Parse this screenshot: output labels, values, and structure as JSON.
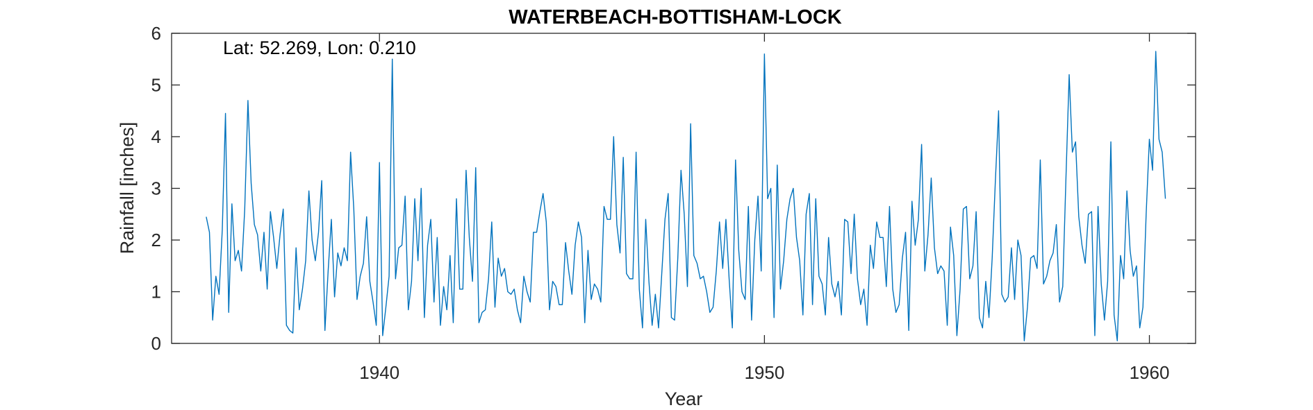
{
  "chart_data": {
    "type": "line",
    "title": "WATERBEACH-BOTTISHAM-LOCK",
    "annotation": "Lat: 52.269, Lon: 0.210",
    "xlabel": "Year",
    "ylabel": "Rainfall [inches]",
    "xlim": [
      1934.6,
      1961.2
    ],
    "ylim": [
      0,
      6
    ],
    "xticks": [
      1940,
      1950,
      1960
    ],
    "yticks": [
      0,
      1,
      2,
      3,
      4,
      5,
      6
    ],
    "grid": false,
    "box": true,
    "line_color": "#0072BD",
    "series": [
      {
        "x_start": 1935.5,
        "x_step": 0.08333,
        "values": [
          2.45,
          2.15,
          0.45,
          1.3,
          0.95,
          2.2,
          4.45,
          0.6,
          2.7,
          1.6,
          1.8,
          1.4,
          2.6,
          4.7,
          3.1,
          2.3,
          2.1,
          1.4,
          2.15,
          1.05,
          2.55,
          2.05,
          1.45,
          2.1,
          2.6,
          0.35,
          0.25,
          0.2,
          1.85,
          0.65,
          1.05,
          1.6,
          2.95,
          2.0,
          1.6,
          2.15,
          3.15,
          0.25,
          1.4,
          2.4,
          0.9,
          1.75,
          1.5,
          1.85,
          1.6,
          3.7,
          2.6,
          0.85,
          1.3,
          1.55,
          2.45,
          1.2,
          0.8,
          0.35,
          3.5,
          0.15,
          0.7,
          1.3,
          5.5,
          1.25,
          1.85,
          1.9,
          2.85,
          0.65,
          1.2,
          2.8,
          1.6,
          3.0,
          0.5,
          1.9,
          2.4,
          0.8,
          2.05,
          0.35,
          1.1,
          0.65,
          1.7,
          0.4,
          2.8,
          1.05,
          1.05,
          3.35,
          2.05,
          1.2,
          3.4,
          0.4,
          0.6,
          0.65,
          1.25,
          2.35,
          0.7,
          1.65,
          1.3,
          1.45,
          1.0,
          0.95,
          1.05,
          0.65,
          0.4,
          1.3,
          1.0,
          0.8,
          2.15,
          2.15,
          2.55,
          2.9,
          2.35,
          0.65,
          1.2,
          1.1,
          0.75,
          0.75,
          1.95,
          1.4,
          0.95,
          1.9,
          2.35,
          2.05,
          0.4,
          1.8,
          0.85,
          1.15,
          1.05,
          0.8,
          2.65,
          2.4,
          2.4,
          4.0,
          2.3,
          1.75,
          3.6,
          1.35,
          1.25,
          1.25,
          3.7,
          1.05,
          0.3,
          2.4,
          1.2,
          0.35,
          0.95,
          0.3,
          1.35,
          2.4,
          2.9,
          0.5,
          0.45,
          1.65,
          3.35,
          2.5,
          1.1,
          4.25,
          1.7,
          1.55,
          1.25,
          1.3,
          1.0,
          0.6,
          0.7,
          1.4,
          2.35,
          1.45,
          2.4,
          1.25,
          0.3,
          3.55,
          1.8,
          1.0,
          0.85,
          2.65,
          0.45,
          2.0,
          2.85,
          1.4,
          5.6,
          2.8,
          3.0,
          0.5,
          3.45,
          1.05,
          1.6,
          2.4,
          2.8,
          3.0,
          2.05,
          1.6,
          0.55,
          2.5,
          2.9,
          0.75,
          2.8,
          1.3,
          1.15,
          0.55,
          2.05,
          1.15,
          0.9,
          1.2,
          0.55,
          2.4,
          2.35,
          1.35,
          2.5,
          1.25,
          0.75,
          1.05,
          0.35,
          1.9,
          1.45,
          2.35,
          2.05,
          2.05,
          1.1,
          2.65,
          1.05,
          0.6,
          0.75,
          1.65,
          2.15,
          0.25,
          2.75,
          1.9,
          2.4,
          3.85,
          1.4,
          2.1,
          3.2,
          1.85,
          1.35,
          1.5,
          1.4,
          0.35,
          2.25,
          1.7,
          0.15,
          1.05,
          2.6,
          2.65,
          1.25,
          1.5,
          2.55,
          0.5,
          0.3,
          1.2,
          0.5,
          1.65,
          3.15,
          4.5,
          0.95,
          0.8,
          0.9,
          1.85,
          0.85,
          2.0,
          1.7,
          0.05,
          0.7,
          1.65,
          1.7,
          1.45,
          3.55,
          1.15,
          1.3,
          1.6,
          1.75,
          2.3,
          0.8,
          1.1,
          3.2,
          5.2,
          3.7,
          3.9,
          2.45,
          1.9,
          1.55,
          2.5,
          2.55,
          0.15,
          2.65,
          1.15,
          0.45,
          1.2,
          3.9,
          0.55,
          0.05,
          1.7,
          1.25,
          2.95,
          1.8,
          1.3,
          1.5,
          0.3,
          0.7,
          2.5,
          3.95,
          3.35,
          5.65,
          3.95,
          3.7,
          2.8
        ]
      }
    ]
  }
}
